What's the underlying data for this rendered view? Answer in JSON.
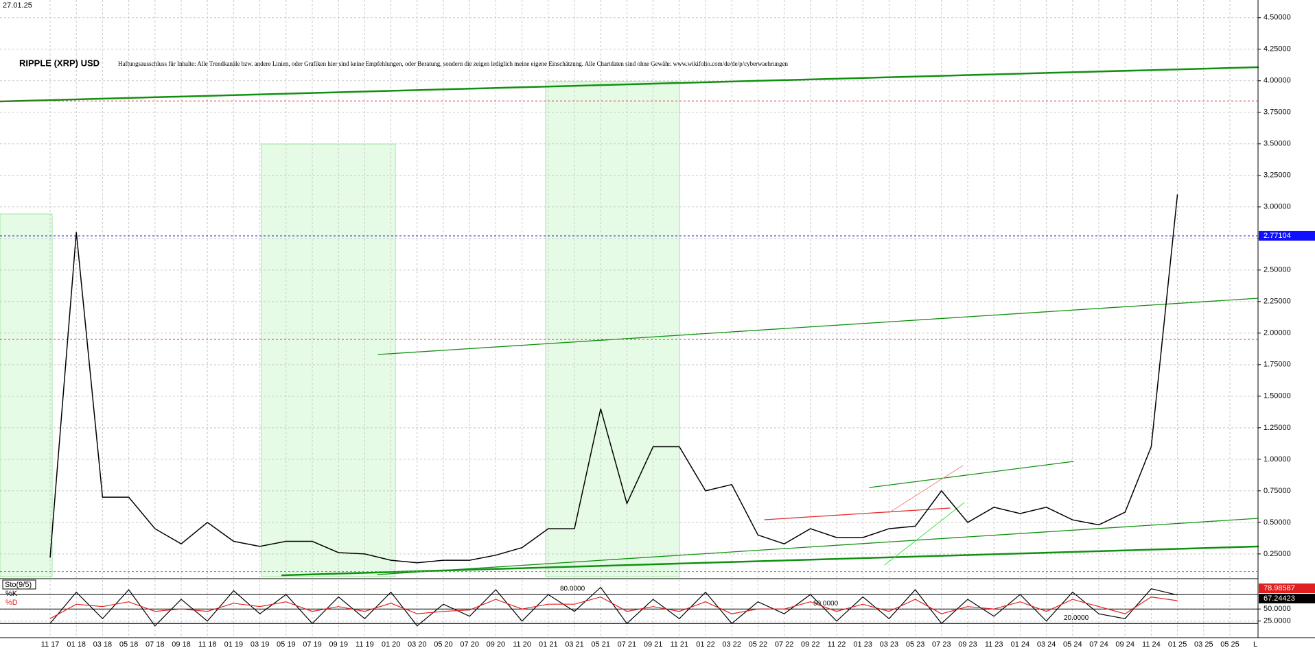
{
  "date_label": "27.01.25",
  "chart_data": [
    {
      "type": "line",
      "title": "RIPPLE (XRP) USD",
      "subtitle": "Haftungsausschluss für Inhalte: Alle Trendkanäle bzw. andere Linien, oder Grafiken hier sind keine Empfehlungen, oder Beratung, sondern die zeigen lediglich meine eigene Einschätzung. Alle Chartdaten sind ohne Gewähr. www.wikifolio.com/de/de/p/cyberwaehrungen",
      "categories": [
        "11 17",
        "01 18",
        "03 18",
        "05 18",
        "07 18",
        "09 18",
        "11 18",
        "01 19",
        "03 19",
        "05 19",
        "07 19",
        "09 19",
        "11 19",
        "01 20",
        "03 20",
        "05 20",
        "07 20",
        "09 20",
        "11 20",
        "01 21",
        "03 21",
        "05 21",
        "07 21",
        "09 21",
        "11 21",
        "01 22",
        "03 22",
        "05 22",
        "07 22",
        "09 22",
        "11 22",
        "01 23",
        "03 23",
        "05 23",
        "07 23",
        "09 23",
        "11 23",
        "01 24",
        "03 24",
        "05 24",
        "07 24",
        "09 24",
        "11 24",
        "01 25",
        "03 25",
        "05 25"
      ],
      "series": [
        {
          "color": "#000000",
          "values": [
            0.22,
            2.8,
            0.7,
            0.7,
            0.45,
            0.33,
            0.5,
            0.35,
            0.31,
            0.35,
            0.35,
            0.26,
            0.25,
            0.2,
            0.18,
            0.2,
            0.2,
            0.24,
            0.3,
            0.45,
            0.45,
            1.4,
            0.65,
            1.1,
            1.1,
            0.75,
            0.8,
            0.4,
            0.33,
            0.45,
            0.38,
            0.38,
            0.45,
            0.47,
            0.75,
            0.5,
            0.62,
            0.57,
            0.62,
            0.52,
            0.48,
            0.58,
            1.1,
            3.1,
            null,
            null
          ]
        }
      ],
      "levels": [
        {
          "value": 3.84,
          "color": "#e03030"
        },
        {
          "value": 2.77104,
          "color": "#2020e0",
          "label": true
        },
        {
          "value": 1.95,
          "color": "#e03030"
        },
        {
          "value": 0.11,
          "color": "#30c030"
        }
      ],
      "ylim": [
        0.07,
        4.64
      ],
      "yticks": [
        {
          "value": 0.25,
          "label": "0.25000"
        },
        {
          "value": 0.5,
          "label": "0.50000"
        },
        {
          "value": 0.75,
          "label": "0.75000"
        },
        {
          "value": 1,
          "label": "1.00000"
        },
        {
          "value": 1.25,
          "label": "1.25000"
        },
        {
          "value": 1.5,
          "label": "1.50000"
        },
        {
          "value": 1.75,
          "label": "1.75000"
        },
        {
          "value": 2,
          "label": "2.00000"
        },
        {
          "value": 2.25,
          "label": "2.25000"
        },
        {
          "value": 2.5,
          "label": "2.50000"
        },
        {
          "value": 2.75,
          "label": "2.75000"
        },
        {
          "value": 3,
          "label": "3.00000"
        },
        {
          "value": 3.25,
          "label": "3.25000"
        },
        {
          "value": 3.5,
          "label": "3.50000"
        },
        {
          "value": 3.75,
          "label": "3.75000"
        },
        {
          "value": 4,
          "label": "4.00000"
        },
        {
          "value": 4.25,
          "label": "4.25000"
        },
        {
          "value": 4.5,
          "label": "4.50000"
        }
      ],
      "grid": true
    },
    {
      "type": "line",
      "title": "Sto(9/5)",
      "series": [
        {
          "name": "%K",
          "color": "#000000",
          "last_value": 78.98587,
          "values": [
            20,
            85,
            30,
            90,
            15,
            70,
            25,
            88,
            40,
            80,
            20,
            75,
            30,
            85,
            15,
            60,
            35,
            90,
            25,
            80,
            45,
            95,
            20,
            70,
            30,
            85,
            20,
            65,
            40,
            80,
            25,
            75,
            30,
            90,
            20,
            70,
            35,
            80,
            25,
            85,
            40,
            30,
            92,
            78.98587,
            null,
            null
          ]
        },
        {
          "name": "%D",
          "color": "#e02020",
          "last_value": 67.24423,
          "values": [
            30,
            60,
            55,
            65,
            45,
            50,
            45,
            62,
            55,
            65,
            45,
            55,
            45,
            62,
            40,
            45,
            48,
            70,
            50,
            60,
            60,
            75,
            45,
            55,
            45,
            65,
            40,
            50,
            50,
            65,
            45,
            60,
            45,
            70,
            40,
            55,
            50,
            65,
            45,
            70,
            55,
            40,
            75,
            67.24423,
            null,
            null
          ]
        }
      ],
      "levels": [
        {
          "value": 80,
          "label": "80.0000"
        },
        {
          "value": 50,
          "label": "50.0000"
        },
        {
          "value": 20,
          "label": "20.0000"
        }
      ],
      "ylim": [
        -8,
        110
      ],
      "yticks": [
        {
          "value": 50,
          "label": "50.0000"
        },
        {
          "value": 25,
          "label": "25.0000"
        }
      ],
      "grid": true
    }
  ]
}
